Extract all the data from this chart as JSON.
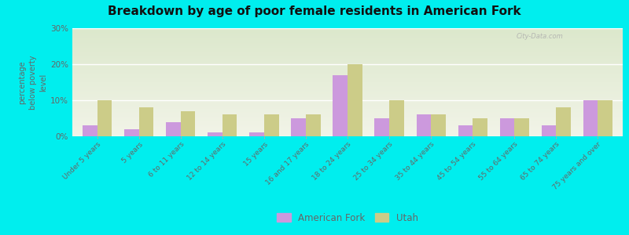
{
  "title": "Breakdown by age of poor female residents in American Fork",
  "categories": [
    "Under 5 years",
    "5 years",
    "6 to 11 years",
    "12 to 14 years",
    "15 years",
    "16 and 17 years",
    "18 to 24 years",
    "25 to 34 years",
    "35 to 44 years",
    "45 to 54 years",
    "55 to 64 years",
    "65 to 74 years",
    "75 years and over"
  ],
  "american_fork": [
    3.0,
    2.0,
    4.0,
    1.0,
    1.0,
    5.0,
    17.0,
    5.0,
    6.0,
    3.0,
    5.0,
    3.0,
    10.0
  ],
  "utah": [
    10.0,
    8.0,
    7.0,
    6.0,
    6.0,
    6.0,
    20.0,
    10.0,
    6.0,
    5.0,
    5.0,
    8.0,
    10.0
  ],
  "american_fork_color": "#cc99dd",
  "utah_color": "#cccc88",
  "title_color": "#111111",
  "ylabel": "percentage\nbelow poverty\nlevel",
  "ylim": [
    0,
    30
  ],
  "yticks": [
    0,
    10,
    20,
    30
  ],
  "ytick_labels": [
    "0%",
    "10%",
    "20%",
    "30%"
  ],
  "bar_width": 0.35,
  "legend_american_fork": "American Fork",
  "legend_utah": "Utah",
  "outer_bg": "#00eeee",
  "plot_bg_color": "#e8eddc",
  "grid_color": "#ffffff",
  "tick_label_color": "#666666",
  "watermark": "City-Data.com"
}
